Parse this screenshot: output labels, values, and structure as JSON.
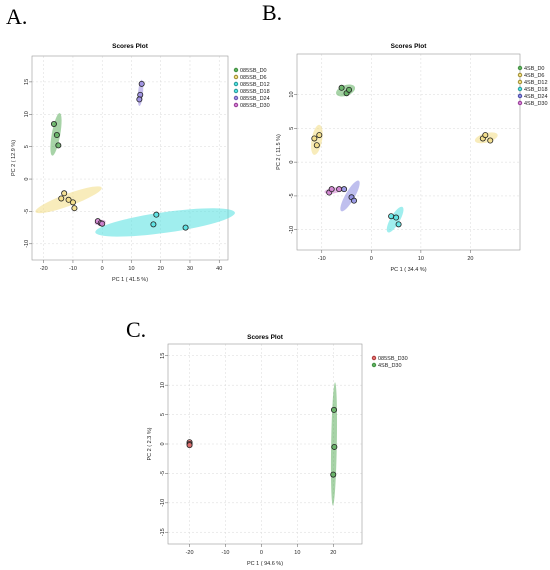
{
  "panel_labels": [
    "A.",
    "B.",
    "C."
  ],
  "chart_data": [
    {
      "type": "scatter",
      "title": "Scores Plot",
      "xlabel": "PC 1 ( 41.5 %)",
      "ylabel": "PC 2 ( 12.9 %)",
      "xlim": [
        -24,
        43
      ],
      "ylim": [
        -12.5,
        19
      ],
      "xticks": [
        -20,
        -10,
        0,
        10,
        20,
        30,
        40
      ],
      "yticks": [
        -10,
        -5,
        0,
        5,
        10,
        15
      ],
      "grid": true,
      "legend_position": "top-right",
      "series": [
        {
          "name": "085SB_D0",
          "color": "#3a8a3a",
          "fill": "#5fae5f",
          "points": [
            [
              -16.5,
              8.5
            ],
            [
              -15.5,
              6.8
            ],
            [
              -15,
              5.2
            ]
          ],
          "ellipse": {
            "cx": -15.8,
            "cy": 6.9,
            "rx": 4.6,
            "ry": 0.9,
            "angle": -80
          }
        },
        {
          "name": "085SB_D6",
          "color": "#8a7a1a",
          "fill": "#f2dc84",
          "points": [
            [
              -13,
              -2.2
            ],
            [
              -10,
              -3.6
            ],
            [
              -9.5,
              -4.5
            ],
            [
              -11.5,
              -3.2
            ],
            [
              -14,
              -3
            ]
          ],
          "ellipse": {
            "cx": -11.5,
            "cy": -3.2,
            "rx": 7.5,
            "ry": 1.3,
            "angle": -20
          }
        },
        {
          "name": "085SB_D12",
          "color": "#1f8a8a",
          "fill": "#52e0e0",
          "points": [
            [
              18.5,
              -5.5
            ],
            [
              17.5,
              -7
            ],
            [
              28.5,
              -7.5
            ]
          ],
          "ellipse": {
            "cx": 21.5,
            "cy": -6.7,
            "rx": 15,
            "ry": 2.2,
            "angle": -8
          }
        },
        {
          "name": "085SB_D18",
          "color": "#1f8a8a",
          "fill": "#52e0e0",
          "points": [],
          "ellipse": null
        },
        {
          "name": "085SB_D24",
          "color": "#5a4aa0",
          "fill": "#9a8ce0",
          "points": [
            [
              13.5,
              14.7
            ],
            [
              13,
              13
            ],
            [
              12.7,
              12.3
            ]
          ],
          "ellipse": {
            "cx": 13.1,
            "cy": 13.3,
            "rx": 2.8,
            "ry": 0.35,
            "angle": -85
          }
        },
        {
          "name": "085SB_D30",
          "color": "#8a2a8a",
          "fill": "#d080d0",
          "points": [
            [
              -1.5,
              -6.5
            ],
            [
              -0.5,
              -6.8
            ],
            [
              0,
              -6.9
            ]
          ],
          "ellipse": {
            "cx": -0.7,
            "cy": -6.7,
            "rx": 1.2,
            "ry": 0.3,
            "angle": -10
          }
        }
      ]
    },
    {
      "type": "scatter",
      "title": "Scores Plot",
      "xlabel": "PC 1 ( 34.4 %)",
      "ylabel": "PC 2 ( 11.5 %)",
      "xlim": [
        -15,
        30
      ],
      "ylim": [
        -13,
        16
      ],
      "xticks": [
        -10,
        0,
        10,
        20
      ],
      "yticks": [
        -10,
        -5,
        0,
        5,
        10
      ],
      "grid": true,
      "legend_position": "top-right",
      "series": [
        {
          "name": "4SB_D0",
          "color": "#3a8a3a",
          "fill": "#5fae5f",
          "points": [
            [
              -6,
              11
            ],
            [
              -5,
              10.2
            ],
            [
              -4.5,
              10.7
            ]
          ],
          "ellipse": {
            "cx": -5.2,
            "cy": 10.6,
            "rx": 1.7,
            "ry": 0.9,
            "angle": -20
          }
        },
        {
          "name": "4SB_D6",
          "color": "#8a7a1a",
          "fill": "#f2dc84",
          "points": [
            [
              -11.5,
              3.5
            ],
            [
              -10.5,
              4
            ],
            [
              -11,
              2.5
            ]
          ],
          "ellipse": {
            "cx": -11,
            "cy": 3.3,
            "rx": 2.6,
            "ry": 0.9,
            "angle": -80
          }
        },
        {
          "name": "4SB_D12",
          "color": "#8a7a1a",
          "fill": "#f2dc84",
          "points": [
            [
              22.5,
              3.5
            ],
            [
              23,
              4
            ],
            [
              24,
              3.2
            ]
          ],
          "ellipse": {
            "cx": 23.2,
            "cy": 3.6,
            "rx": 2.0,
            "ry": 0.8,
            "angle": -15
          }
        },
        {
          "name": "4SB_D18",
          "color": "#1f8a8a",
          "fill": "#52e0e0",
          "points": [
            [
              4,
              -8
            ],
            [
              5,
              -8.2
            ],
            [
              5.5,
              -9.2
            ]
          ],
          "ellipse": {
            "cx": 4.8,
            "cy": -8.5,
            "rx": 2.5,
            "ry": 0.8,
            "angle": -60
          }
        },
        {
          "name": "4SB_D24",
          "color": "#3a3a9a",
          "fill": "#8a8ae0",
          "points": [
            [
              -4,
              -5.2
            ],
            [
              -3.5,
              -5.7
            ],
            [
              -5.5,
              -4
            ]
          ],
          "ellipse": {
            "cx": -4.3,
            "cy": -5,
            "rx": 3.0,
            "ry": 0.8,
            "angle": -60
          }
        },
        {
          "name": "4SB_D30",
          "color": "#8a2a8a",
          "fill": "#d080d0",
          "points": [
            [
              -8.5,
              -4.5
            ],
            [
              -8,
              -4
            ],
            [
              -6.5,
              -4
            ]
          ],
          "ellipse": {
            "cx": -7.6,
            "cy": -4.2,
            "rx": 1.6,
            "ry": 0.5,
            "angle": -10
          }
        }
      ]
    },
    {
      "type": "scatter",
      "title": "Scores Plot",
      "xlabel": "PC 1 ( 94.6 %)",
      "ylabel": "PC 2 ( 2.3 %)",
      "xlim": [
        -26,
        28
      ],
      "ylim": [
        -17,
        17
      ],
      "xticks": [
        -20,
        -10,
        0,
        10,
        20
      ],
      "yticks": [
        -15,
        -10,
        -5,
        0,
        5,
        10,
        15
      ],
      "grid": true,
      "legend_position": "top-right",
      "series": [
        {
          "name": "085SB_D30",
          "color": "#a02a2a",
          "fill": "#e07070",
          "points": [
            [
              -20,
              0.3
            ],
            [
              -20,
              0
            ],
            [
              -20,
              -0.2
            ]
          ],
          "ellipse": {
            "cx": -20,
            "cy": 0,
            "rx": 0.6,
            "ry": 0.4,
            "angle": 0
          }
        },
        {
          "name": "4SB_D30",
          "color": "#3a8a3a",
          "fill": "#5fae5f",
          "points": [
            [
              20.2,
              5.8
            ],
            [
              20.3,
              -0.5
            ],
            [
              20,
              -5.2
            ]
          ],
          "ellipse": {
            "cx": 20.2,
            "cy": 0,
            "rx": 13,
            "ry": 0.6,
            "angle": -89
          }
        }
      ]
    }
  ]
}
